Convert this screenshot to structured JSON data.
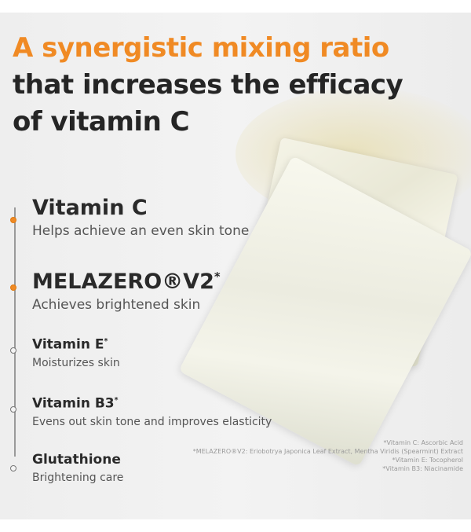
{
  "headline": {
    "line1": "A synergistic mixing ratio",
    "line2": "that increases the efficacy",
    "line3": "of vitamin C"
  },
  "accent_color": "#f08a24",
  "ingredients": [
    {
      "name": "Vitamin C",
      "sup": "",
      "desc": "Helps achieve an even skin tone",
      "highlight": true
    },
    {
      "name": "MELAZERO®V2",
      "sup": "*",
      "desc": "Achieves brightened skin",
      "highlight": true
    },
    {
      "name": "Vitamin E",
      "sup": "*",
      "desc": "Moisturizes skin",
      "highlight": false
    },
    {
      "name": "Vitamin B3",
      "sup": "*",
      "desc": "Evens out skin tone and improves elasticity",
      "highlight": false
    },
    {
      "name": "Glutathione",
      "sup": "",
      "desc": "Brightening care",
      "highlight": false
    }
  ],
  "footnotes": [
    "*Vitamin C: Ascorbic Acid",
    "*MELAZERO®V2: Eriobotrya Japonica Leaf Extract, Mentha Viridis (Spearmint) Extract",
    "*Vitamin E: Tocopherol",
    "*Vitamin B3: Niacinamide"
  ]
}
